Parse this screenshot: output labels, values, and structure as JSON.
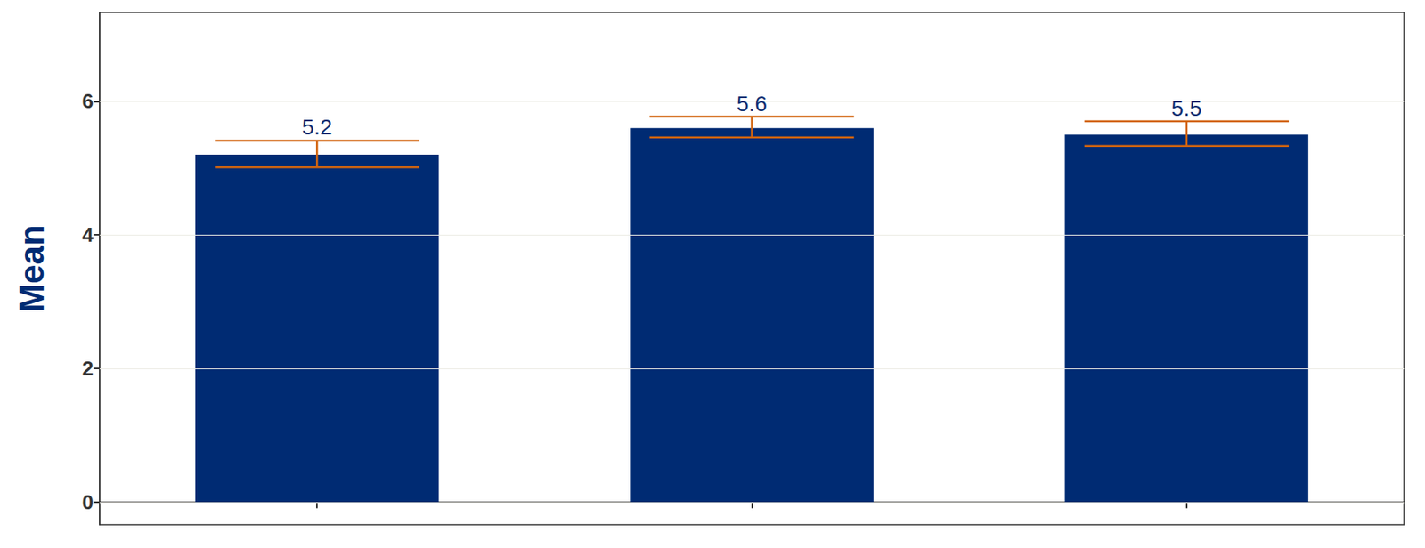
{
  "chart_data": {
    "type": "bar",
    "y_label": "Mean",
    "categories": [
      null,
      null,
      null
    ],
    "values": [
      5.2,
      5.6,
      5.5
    ],
    "error_lower": [
      5.01,
      5.46,
      5.33
    ],
    "error_upper": [
      5.41,
      5.77,
      5.7
    ],
    "color": "#002b73",
    "error_color": "#d2640f",
    "ylim": [
      -0.34,
      7.33
    ],
    "yticks": [
      0,
      2,
      4,
      6
    ],
    "grid": true,
    "data_labels": true
  }
}
